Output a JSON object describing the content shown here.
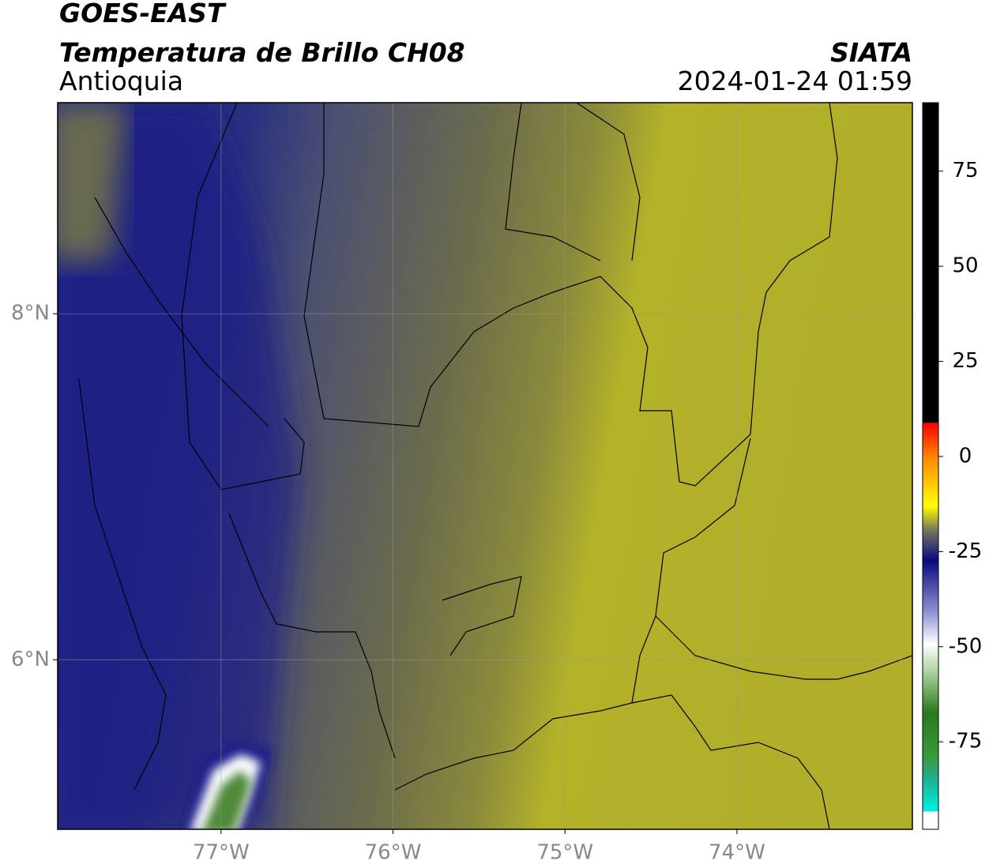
{
  "header": {
    "satellite": "GOES-EAST",
    "product": "Temperatura de Brillo CH08",
    "region": "Antioquia",
    "source": "SIATA",
    "datetime": "2024-01-24 01:59"
  },
  "map": {
    "lonlim": [
      -77.95,
      -72.98
    ],
    "latlim": [
      5.02,
      9.22
    ],
    "lon_ticks": [
      {
        "value": -77,
        "label": "77°W"
      },
      {
        "value": -76,
        "label": "76°W"
      },
      {
        "value": -75,
        "label": "75°W"
      },
      {
        "value": -74,
        "label": "74°W"
      }
    ],
    "lat_ticks": [
      {
        "value": 8,
        "label": "8°N"
      },
      {
        "value": 6,
        "label": "6°N"
      }
    ]
  },
  "colorbar": {
    "range": [
      -98,
      93
    ],
    "ticks": [
      75,
      50,
      25,
      0,
      -25,
      -50,
      -75
    ]
  }
}
